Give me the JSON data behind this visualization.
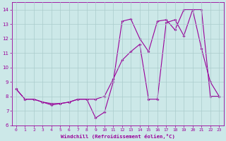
{
  "xlabel": "Windchill (Refroidissement éolien,°C)",
  "background_color": "#cce8e8",
  "grid_color": "#aacccc",
  "line_color": "#990099",
  "xlim": [
    -0.5,
    23.5
  ],
  "ylim": [
    6,
    14.5
  ],
  "yticks": [
    6,
    7,
    8,
    9,
    10,
    11,
    12,
    13,
    14
  ],
  "xticks": [
    0,
    1,
    2,
    3,
    4,
    5,
    6,
    7,
    8,
    9,
    10,
    11,
    12,
    13,
    14,
    15,
    16,
    17,
    18,
    19,
    20,
    21,
    22,
    23
  ],
  "line1_x": [
    0,
    1,
    2,
    3,
    4,
    5,
    6,
    7,
    8,
    9,
    10,
    11,
    12,
    13,
    14,
    15,
    16,
    17,
    18,
    19,
    20,
    21,
    22,
    23
  ],
  "line1_y": [
    8.5,
    7.8,
    7.8,
    7.6,
    7.4,
    7.5,
    7.6,
    7.8,
    7.8,
    6.5,
    6.9,
    9.0,
    13.2,
    13.35,
    12.0,
    11.1,
    13.2,
    13.3,
    12.6,
    14.0,
    14.0,
    11.3,
    9.0,
    8.0
  ],
  "line2_x": [
    0,
    1,
    2,
    3,
    4,
    5,
    6,
    7,
    8,
    9,
    10,
    11,
    12,
    13,
    14,
    15,
    16,
    17,
    18,
    19,
    20,
    21,
    22,
    23
  ],
  "line2_y": [
    8.5,
    7.8,
    7.8,
    7.6,
    7.5,
    7.5,
    7.6,
    7.8,
    7.8,
    7.8,
    8.0,
    9.2,
    10.5,
    11.1,
    11.6,
    7.8,
    7.8,
    13.1,
    13.3,
    12.2,
    14.0,
    14.0,
    8.0,
    8.0
  ]
}
